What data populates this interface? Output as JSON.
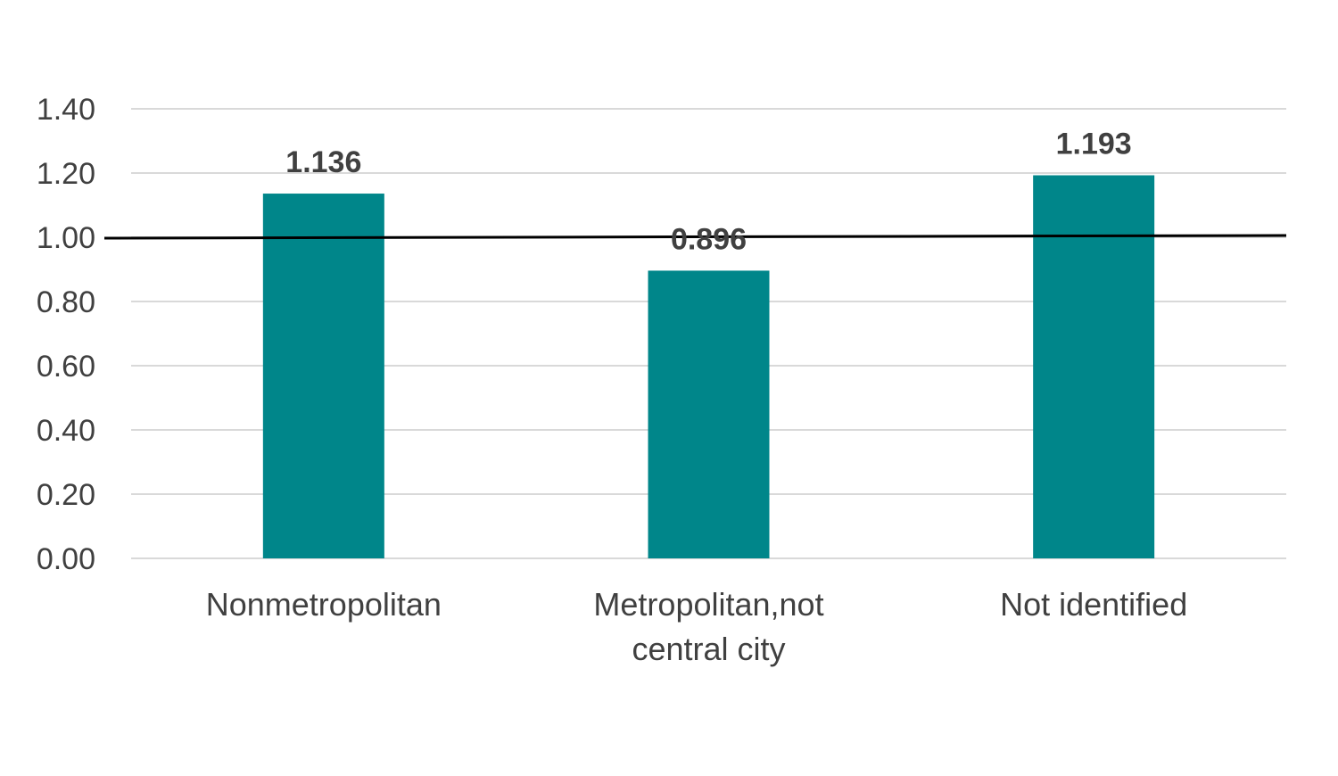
{
  "chart_data": {
    "type": "bar",
    "title": "",
    "xlabel": "",
    "ylabel": "",
    "categories": [
      [
        "Nonmetropolitan"
      ],
      [
        "Metropolitan,not",
        "central city"
      ],
      [
        "Not identified"
      ]
    ],
    "values": [
      1.136,
      0.896,
      1.193
    ],
    "data_labels": [
      "1.136",
      "0.896",
      "1.193"
    ],
    "ylim": [
      0,
      1.4
    ],
    "yticks": [
      0,
      0.2,
      0.4,
      0.6,
      0.8,
      1.0,
      1.2,
      1.4
    ],
    "ytick_labels": [
      "0.00",
      "0.20",
      "0.40",
      "0.60",
      "0.80",
      "1.00",
      "1.20",
      "1.40"
    ],
    "reference_line": 1.0,
    "grid": true,
    "legend": "none",
    "colors": {
      "bar": "#00868a",
      "reference_line": "#000000",
      "grid": "#d9d9d9",
      "text": "#404040"
    }
  }
}
